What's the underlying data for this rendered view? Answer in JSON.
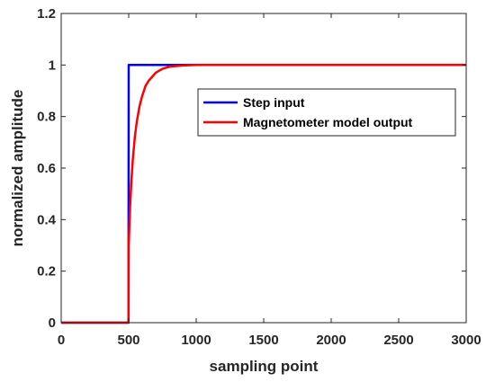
{
  "chart_data": {
    "type": "line",
    "title": "",
    "xlabel": "sampling point",
    "ylabel": "normalized amplitude",
    "xlim": [
      0,
      3000
    ],
    "ylim": [
      0,
      1.2
    ],
    "xticks": [
      0,
      500,
      1000,
      1500,
      2000,
      2500,
      3000
    ],
    "xtick_labels": [
      "0",
      "500",
      "1000",
      "1500",
      "2000",
      "2500",
      "3000"
    ],
    "yticks": [
      0,
      0.2,
      0.4,
      0.6,
      0.8,
      1,
      1.2
    ],
    "ytick_labels": [
      "0",
      "0.2",
      "0.4",
      "0.6",
      "0.8",
      "1",
      "1.2"
    ],
    "grid": false,
    "legend_position": "upper-right, inside",
    "series": [
      {
        "name": "Step input",
        "color": "#0000ff",
        "x": [
          0,
          499,
          500,
          3000
        ],
        "y": [
          0,
          0,
          1,
          1
        ]
      },
      {
        "name": "Magnetometer model output",
        "color": "#ff0000",
        "x": [
          0,
          499,
          500,
          510,
          520,
          530,
          545,
          560,
          580,
          600,
          625,
          650,
          700,
          750,
          800,
          900,
          1000,
          1200,
          1500,
          2000,
          2500,
          3000
        ],
        "y": [
          0,
          0,
          0.3,
          0.45,
          0.55,
          0.63,
          0.72,
          0.78,
          0.84,
          0.88,
          0.92,
          0.94,
          0.97,
          0.985,
          0.993,
          0.998,
          1,
          1,
          1,
          1,
          1,
          1
        ]
      }
    ]
  }
}
